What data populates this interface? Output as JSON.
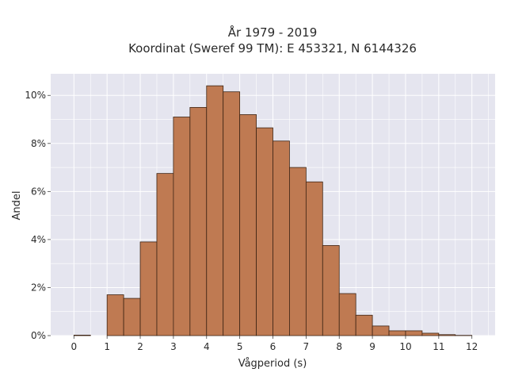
{
  "chart_data": {
    "type": "bar",
    "title": [
      "År 1979 - 2019",
      "Koordinat (Sweref 99 TM): E 453321, N 6144326"
    ],
    "xlabel": "Vågperiod (s)",
    "ylabel": "Andel",
    "xlim": [
      -0.7,
      12.7
    ],
    "ylim": [
      0,
      10.9
    ],
    "x_ticks": [
      0,
      1,
      2,
      3,
      4,
      5,
      6,
      7,
      8,
      9,
      10,
      11,
      12
    ],
    "x_tick_labels": [
      "0",
      "1",
      "2",
      "3",
      "4",
      "5",
      "6",
      "7",
      "8",
      "9",
      "10",
      "11",
      "12"
    ],
    "y_ticks": [
      0,
      2,
      4,
      6,
      8,
      10
    ],
    "y_tick_labels": [
      "0%",
      "2%",
      "4%",
      "6%",
      "8%",
      "10%"
    ],
    "bin_width": 0.5,
    "bins": [
      {
        "start": 0.0,
        "value": 0.02
      },
      {
        "start": 0.5,
        "value": 0.0
      },
      {
        "start": 1.0,
        "value": 1.7
      },
      {
        "start": 1.5,
        "value": 1.55
      },
      {
        "start": 2.0,
        "value": 3.9
      },
      {
        "start": 2.5,
        "value": 6.75
      },
      {
        "start": 3.0,
        "value": 9.1
      },
      {
        "start": 3.5,
        "value": 9.5
      },
      {
        "start": 4.0,
        "value": 10.4
      },
      {
        "start": 4.5,
        "value": 10.15
      },
      {
        "start": 5.0,
        "value": 9.2
      },
      {
        "start": 5.5,
        "value": 8.65
      },
      {
        "start": 6.0,
        "value": 8.1
      },
      {
        "start": 6.5,
        "value": 7.0
      },
      {
        "start": 7.0,
        "value": 6.4
      },
      {
        "start": 7.5,
        "value": 3.75
      },
      {
        "start": 8.0,
        "value": 1.75
      },
      {
        "start": 8.5,
        "value": 0.85
      },
      {
        "start": 9.0,
        "value": 0.4
      },
      {
        "start": 9.5,
        "value": 0.2
      },
      {
        "start": 10.0,
        "value": 0.2
      },
      {
        "start": 10.5,
        "value": 0.1
      },
      {
        "start": 11.0,
        "value": 0.04
      },
      {
        "start": 11.5,
        "value": 0.01
      }
    ],
    "grid": true,
    "legend": "none",
    "colors": {
      "bar_fill": "#bf7a52",
      "bar_edge": "#3d2414",
      "plot_background": "#e5e5ef",
      "grid": "#ffffff"
    }
  }
}
